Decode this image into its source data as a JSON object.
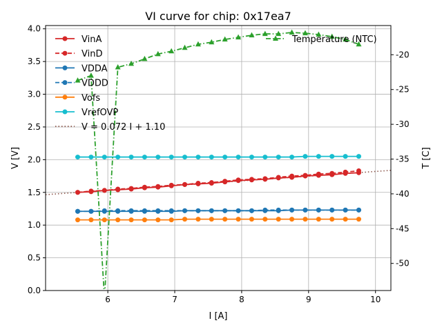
{
  "chart_data": {
    "type": "line",
    "title": "VI curve for chip: 0x17ea7",
    "xlabel": "I [A]",
    "ylabel": "V [V]",
    "ylabel_right": "T [C]",
    "xlim": [
      5.07,
      10.23
    ],
    "ylim": [
      0,
      4.05
    ],
    "ylim_right": [
      -53.9,
      -15.8
    ],
    "grid": true,
    "xticks": [
      6,
      7,
      8,
      9,
      10
    ],
    "yticks": [
      0.0,
      0.5,
      1.0,
      1.5,
      2.0,
      2.5,
      3.0,
      3.5,
      4.0
    ],
    "yticks_right": [
      -50,
      -45,
      -40,
      -35,
      -30,
      -25,
      -20
    ],
    "legend_left_placement": "upper-left",
    "legend_right_placement": "upper-right",
    "x": [
      5.55,
      5.75,
      5.95,
      6.15,
      6.35,
      6.55,
      6.75,
      6.95,
      7.15,
      7.35,
      7.55,
      7.75,
      7.95,
      8.15,
      8.35,
      8.55,
      8.75,
      8.95,
      9.15,
      9.35,
      9.55,
      9.75
    ],
    "series": [
      {
        "name": "VinA",
        "color": "#d62728",
        "dash": "solid",
        "values": [
          1.5,
          1.51,
          1.53,
          1.54,
          1.55,
          1.57,
          1.58,
          1.6,
          1.62,
          1.63,
          1.64,
          1.66,
          1.68,
          1.69,
          1.7,
          1.72,
          1.73,
          1.75,
          1.76,
          1.77,
          1.79,
          1.8
        ]
      },
      {
        "name": "VinD",
        "color": "#d62728",
        "dash": "dashed",
        "values": [
          1.5,
          1.52,
          1.53,
          1.55,
          1.56,
          1.58,
          1.59,
          1.61,
          1.62,
          1.64,
          1.65,
          1.67,
          1.69,
          1.7,
          1.71,
          1.73,
          1.75,
          1.76,
          1.78,
          1.79,
          1.81,
          1.83
        ]
      },
      {
        "name": "VDDA",
        "color": "#1f77b4",
        "dash": "solid",
        "values": [
          1.21,
          1.21,
          1.21,
          1.21,
          1.21,
          1.21,
          1.21,
          1.21,
          1.22,
          1.22,
          1.22,
          1.22,
          1.22,
          1.22,
          1.22,
          1.22,
          1.23,
          1.23,
          1.23,
          1.23,
          1.23,
          1.23
        ]
      },
      {
        "name": "VDDD",
        "color": "#1f77b4",
        "dash": "dashed",
        "values": [
          1.21,
          1.21,
          1.22,
          1.22,
          1.22,
          1.22,
          1.22,
          1.22,
          1.22,
          1.22,
          1.22,
          1.22,
          1.22,
          1.22,
          1.23,
          1.23,
          1.23,
          1.23,
          1.23,
          1.23,
          1.23,
          1.23
        ]
      },
      {
        "name": "Vofs",
        "color": "#ff7f0e",
        "dash": "solid",
        "values": [
          1.08,
          1.08,
          1.08,
          1.08,
          1.08,
          1.08,
          1.08,
          1.08,
          1.09,
          1.09,
          1.09,
          1.09,
          1.09,
          1.09,
          1.09,
          1.09,
          1.09,
          1.09,
          1.09,
          1.09,
          1.09,
          1.09
        ]
      },
      {
        "name": "VrefOVP",
        "color": "#17becf",
        "dash": "solid",
        "values": [
          2.04,
          2.04,
          2.04,
          2.04,
          2.04,
          2.04,
          2.04,
          2.04,
          2.04,
          2.04,
          2.04,
          2.04,
          2.04,
          2.04,
          2.04,
          2.04,
          2.04,
          2.05,
          2.05,
          2.05,
          2.05,
          2.05
        ]
      }
    ],
    "fit": {
      "label": "V = 0.072 I + 1.10",
      "slope": 0.072,
      "intercept": 1.1,
      "color": "#8c564b"
    },
    "temperature": {
      "name": "Temperature (NTC)",
      "color": "#2ca02c",
      "values": [
        -23.7,
        -23.0,
        -55.0,
        -21.8,
        -21.3,
        -20.6,
        -19.9,
        -19.5,
        -19.0,
        -18.5,
        -18.2,
        -17.8,
        -17.5,
        -17.2,
        -17.0,
        -17.0,
        -16.8,
        -16.9,
        -17.1,
        -17.4,
        -17.8,
        -18.5
      ]
    }
  }
}
